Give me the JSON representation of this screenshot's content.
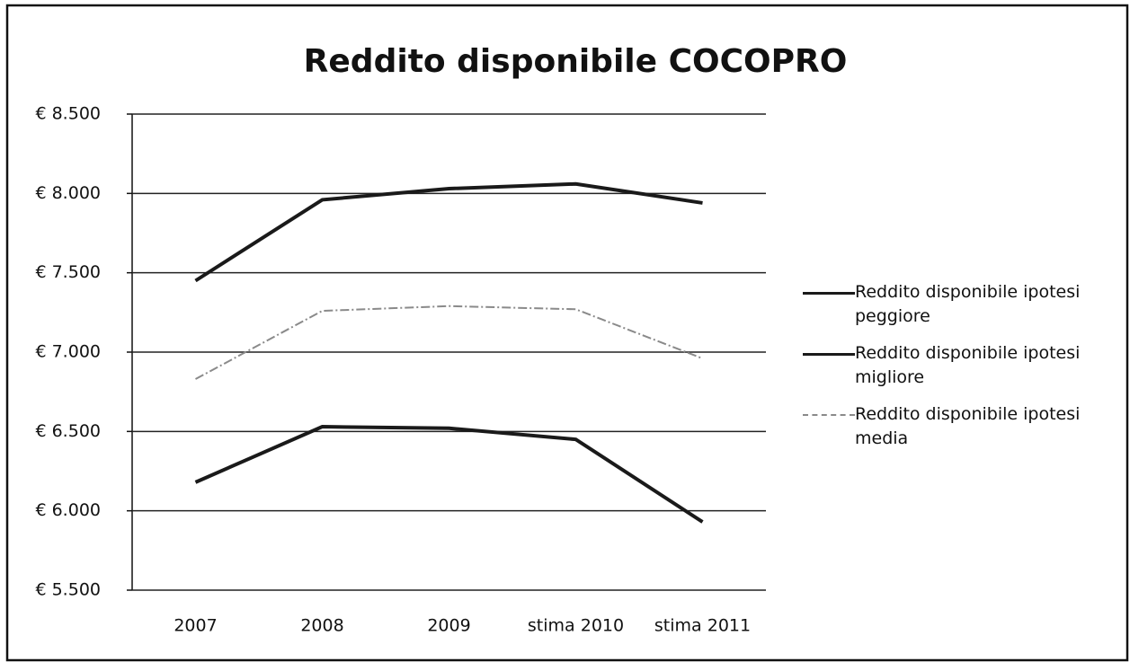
{
  "chart_data": {
    "type": "line",
    "title": "Reddito disponibile COCOPRO",
    "categories": [
      "2007",
      "2008",
      "2009",
      "stima 2010",
      "stima 2011"
    ],
    "series": [
      {
        "name": "Reddito disponibile ipotesi peggiore",
        "color": "#1a1a1a",
        "values": [
          6180,
          6530,
          6520,
          6450,
          5930
        ]
      },
      {
        "name": "Reddito disponibile ipotesi migliore",
        "color": "#1a1a1a",
        "values": [
          7450,
          7960,
          8030,
          8060,
          7940
        ]
      },
      {
        "name": "Reddito disponibile ipotesi media",
        "color": "#8a8a8a",
        "values": [
          6830,
          7260,
          7290,
          7270,
          6960
        ]
      }
    ],
    "ylim": [
      5500,
      8500
    ],
    "yticks": [
      {
        "value": 5500,
        "label": "€ 5.500"
      },
      {
        "value": 6000,
        "label": "€ 6.000"
      },
      {
        "value": 6500,
        "label": "€ 6.500"
      },
      {
        "value": 7000,
        "label": "€ 7.000"
      },
      {
        "value": 7500,
        "label": "€ 7.500"
      },
      {
        "value": 8000,
        "label": "€ 8.000"
      },
      {
        "value": 8500,
        "label": "€ 8.500"
      }
    ],
    "grid": true,
    "legend": "right"
  }
}
